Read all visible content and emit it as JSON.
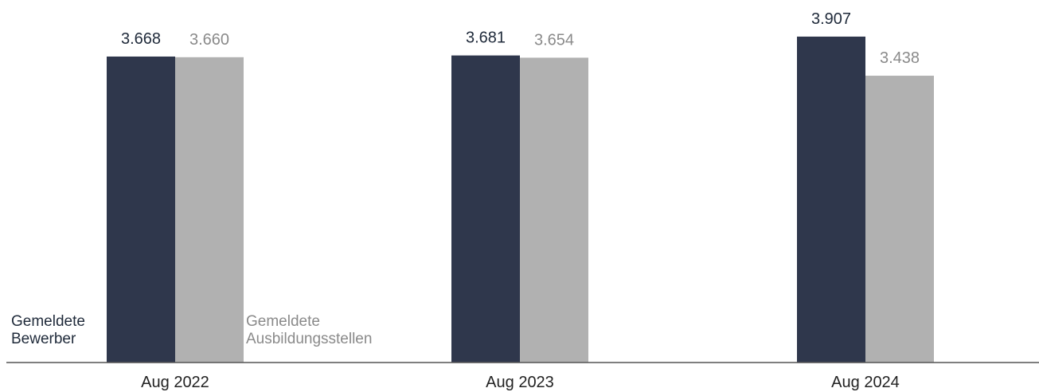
{
  "chart_data": {
    "type": "bar",
    "categories": [
      "Aug 2022",
      "Aug 2023",
      "Aug 2024"
    ],
    "series": [
      {
        "name": "Gemeldete Bewerber",
        "name_lines": [
          "Gemeldete",
          "Bewerber"
        ],
        "values": [
          3668,
          3681,
          3907
        ],
        "labels": [
          "3.668",
          "3.681",
          "3.907"
        ],
        "color": "#2f374c",
        "label_color": "#1f2a3a"
      },
      {
        "name": "Gemeldete Ausbildungsstellen",
        "name_lines": [
          "Gemeldete",
          "Ausbildungsstellen"
        ],
        "values": [
          3660,
          3654,
          3438
        ],
        "labels": [
          "3.660",
          "3.654",
          "3.438"
        ],
        "color": "#b1b1b1",
        "label_color": "#8a8a8a"
      }
    ],
    "ylim": [
      0,
      4000
    ],
    "grid": false,
    "legend": "inside-bottom-left",
    "axis_color": "#555555"
  }
}
